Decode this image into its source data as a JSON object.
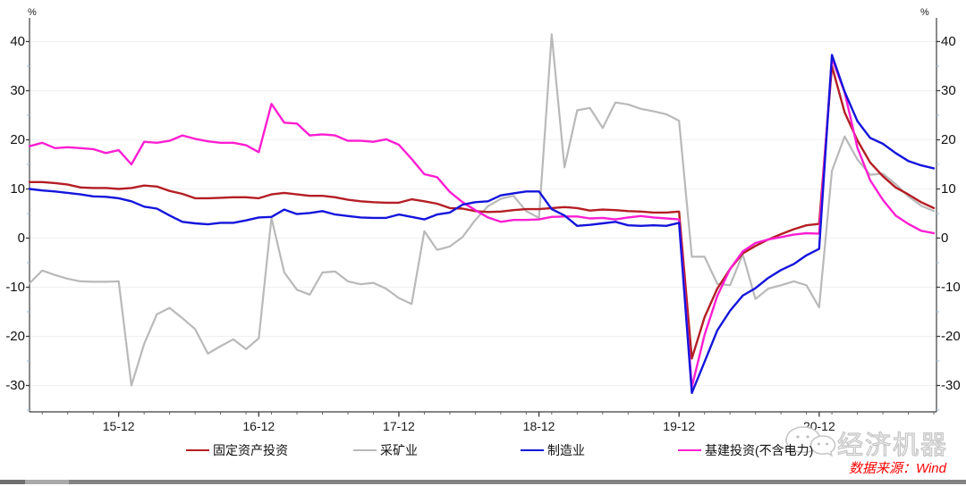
{
  "axes": {
    "left_unit": "%",
    "right_unit": "%"
  },
  "footer": {
    "source": "数据来源：Wind",
    "watermark": "经济机器",
    "watermark_icon": "chat-bubbles-icon"
  },
  "colors": {
    "background": "#ffffff",
    "grid": "#f2eff0",
    "axis": "#3c3c3c",
    "minor_tick": "#a3c3d9",
    "source_text": "#fb0200",
    "watermark": "#c6c6c6"
  },
  "chart_data": {
    "type": "line",
    "title": "",
    "xlabel": "",
    "ylabel": "%",
    "grid": "horizontal",
    "legend_position": "bottom",
    "ylim": [
      -36,
      44.8
    ],
    "y_ticks": [
      40,
      30,
      20,
      10,
      0,
      -10,
      -20,
      -30
    ],
    "y_minor_step": 5,
    "x_labels": [
      "15-12",
      "16-12",
      "17-12",
      "18-12",
      "19-12",
      "20-12"
    ],
    "x_year_indices": [
      7,
      18,
      29,
      40,
      51,
      62
    ],
    "x_minor_every": 2,
    "x": [
      "15-05",
      "15-06",
      "15-07",
      "15-08",
      "15-09",
      "15-10",
      "15-11",
      "15-12",
      "16-02",
      "16-03",
      "16-04",
      "16-05",
      "16-06",
      "16-07",
      "16-08",
      "16-09",
      "16-10",
      "16-11",
      "16-12",
      "17-02",
      "17-03",
      "17-04",
      "17-05",
      "17-06",
      "17-07",
      "17-08",
      "17-09",
      "17-10",
      "17-11",
      "17-12",
      "18-02",
      "18-03",
      "18-04",
      "18-05",
      "18-06",
      "18-07",
      "18-08",
      "18-09",
      "18-10",
      "18-11",
      "18-12",
      "19-02",
      "19-03",
      "19-04",
      "19-05",
      "19-06",
      "19-07",
      "19-08",
      "19-09",
      "19-10",
      "19-11",
      "19-12",
      "20-02",
      "20-03",
      "20-04",
      "20-05",
      "20-06",
      "20-07",
      "20-08",
      "20-09",
      "20-10",
      "20-11",
      "20-12",
      "21-02",
      "21-03",
      "21-04",
      "21-05",
      "21-06",
      "21-07",
      "21-08",
      "21-09",
      "21-10"
    ],
    "series": [
      {
        "name": "固定资产投资",
        "color": "#b41e24",
        "values": [
          11.4,
          11.4,
          11.2,
          10.9,
          10.3,
          10.2,
          10.2,
          10.0,
          10.2,
          10.7,
          10.5,
          9.6,
          9.0,
          8.1,
          8.1,
          8.2,
          8.3,
          8.3,
          8.1,
          8.9,
          9.2,
          8.9,
          8.6,
          8.6,
          8.3,
          7.8,
          7.5,
          7.3,
          7.2,
          7.2,
          7.9,
          7.5,
          7.0,
          6.1,
          6.0,
          5.5,
          5.3,
          5.4,
          5.7,
          5.9,
          5.9,
          6.1,
          6.3,
          6.1,
          5.6,
          5.8,
          5.7,
          5.5,
          5.4,
          5.2,
          5.2,
          5.4,
          -24.5,
          -16.1,
          -10.3,
          -6.3,
          -3.1,
          -1.6,
          -0.3,
          0.8,
          1.8,
          2.6,
          2.9,
          35.0,
          25.6,
          19.9,
          15.4,
          12.6,
          10.3,
          8.9,
          7.3,
          6.1
        ]
      },
      {
        "name": "采矿业",
        "color": "#b9b9b9",
        "values": [
          -9.2,
          -6.6,
          -7.5,
          -8.3,
          -8.8,
          -8.9,
          -8.9,
          -8.8,
          -30.0,
          -21.5,
          -15.5,
          -14.2,
          -16.3,
          -18.5,
          -23.5,
          -22.0,
          -20.6,
          -22.6,
          -20.4,
          4.1,
          -7.0,
          -10.5,
          -11.5,
          -7.0,
          -6.8,
          -8.8,
          -9.4,
          -9.1,
          -10.3,
          -12.2,
          -13.4,
          1.4,
          -2.4,
          -1.7,
          0.2,
          3.7,
          6.5,
          8.0,
          8.6,
          5.5,
          4.1,
          41.5,
          14.4,
          26.0,
          26.5,
          22.4,
          27.6,
          27.2,
          26.3,
          25.8,
          25.2,
          23.9,
          -3.8,
          -3.8,
          -9.3,
          -9.6,
          -3.3,
          -12.4,
          -10.3,
          -9.6,
          -8.8,
          -9.6,
          -14.1,
          13.7,
          20.7,
          16.0,
          12.9,
          13.1,
          11.0,
          8.5,
          6.6,
          5.5
        ]
      },
      {
        "name": "制造业",
        "color": "#1414dc",
        "values": [
          10.0,
          9.7,
          9.5,
          9.2,
          8.9,
          8.5,
          8.4,
          8.1,
          7.5,
          6.4,
          6.0,
          4.6,
          3.3,
          3.0,
          2.8,
          3.1,
          3.1,
          3.6,
          4.2,
          4.3,
          5.8,
          4.9,
          5.1,
          5.5,
          4.8,
          4.5,
          4.2,
          4.1,
          4.1,
          4.8,
          4.3,
          3.8,
          4.8,
          5.2,
          6.8,
          7.3,
          7.5,
          8.7,
          9.1,
          9.5,
          9.5,
          5.9,
          4.6,
          2.5,
          2.7,
          3.0,
          3.3,
          2.6,
          2.5,
          2.6,
          2.5,
          3.1,
          -31.5,
          -25.2,
          -18.8,
          -14.8,
          -11.7,
          -10.2,
          -8.1,
          -6.5,
          -5.3,
          -3.5,
          -2.2,
          37.3,
          29.8,
          23.8,
          20.4,
          19.2,
          17.3,
          15.7,
          14.8,
          14.2
        ]
      },
      {
        "name": "基建投资(不含电力)",
        "color": "#ff1ed2",
        "values": [
          18.7,
          19.4,
          18.3,
          18.5,
          18.3,
          18.1,
          17.3,
          17.9,
          15.0,
          19.6,
          19.4,
          19.8,
          20.9,
          20.2,
          19.7,
          19.4,
          19.4,
          18.9,
          17.5,
          27.3,
          23.5,
          23.3,
          20.9,
          21.1,
          20.9,
          19.8,
          19.8,
          19.6,
          20.1,
          19.0,
          16.1,
          13.0,
          12.4,
          9.4,
          7.3,
          5.7,
          4.2,
          3.3,
          3.7,
          3.7,
          3.8,
          4.3,
          4.4,
          4.4,
          4.0,
          4.1,
          3.8,
          4.2,
          4.5,
          4.2,
          4.0,
          3.8,
          -30.3,
          -19.7,
          -11.8,
          -6.3,
          -2.7,
          -1.0,
          -0.3,
          0.2,
          0.7,
          1.0,
          0.9,
          36.6,
          29.7,
          18.4,
          11.8,
          7.8,
          4.6,
          2.9,
          1.5,
          1.0
        ]
      }
    ]
  }
}
